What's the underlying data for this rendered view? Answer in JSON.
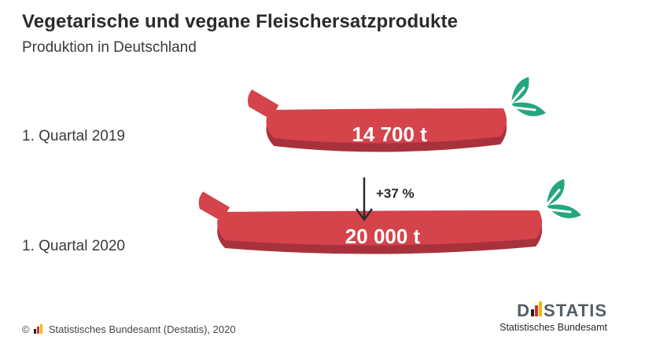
{
  "header": {
    "title": "Vegetarische und vegane Fleischersatzprodukte",
    "subtitle": "Produktion in Deutschland"
  },
  "chart_data": {
    "type": "bar",
    "categories": [
      "1. Quartal 2019",
      "1. Quartal 2020"
    ],
    "values": [
      14700,
      20000
    ],
    "value_labels": [
      "14 700 t",
      "20 000 t"
    ],
    "change_label": "+37 %",
    "unit": "t"
  },
  "colors": {
    "sausage": "#d5434b",
    "sausage_shadow": "#a8323b",
    "leaf": "#24a67f",
    "brand_red": "#d32f2f",
    "brand_yellow": "#f2b705",
    "brand_black": "#222222"
  },
  "footer": {
    "copyright_symbol": "©",
    "source": "Statistisches Bundesamt (Destatis), 2020"
  },
  "logo": {
    "word_left": "D",
    "word_right": "STATIS",
    "subline": "Statistisches Bundesamt"
  }
}
